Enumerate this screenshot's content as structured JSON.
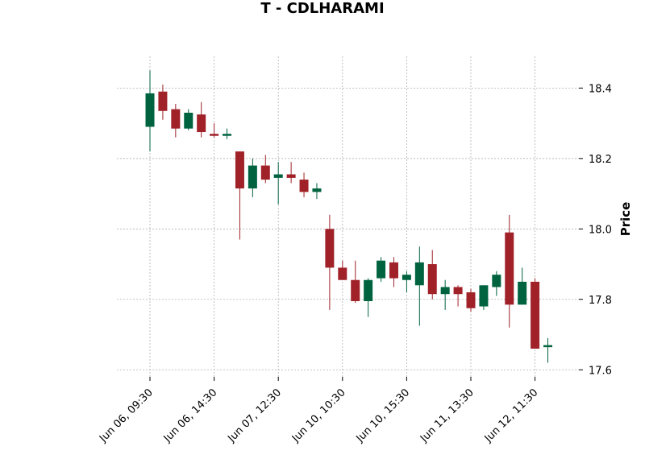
{
  "chart_data": {
    "type": "candlestick",
    "title": "T - CDLHARAMI",
    "ylabel": "Price",
    "xlabel": "",
    "ylim": [
      17.58,
      18.49
    ],
    "y_ticks": [
      17.6,
      17.8,
      18.0,
      18.2,
      18.4
    ],
    "y_tick_labels": [
      "17.6",
      "17.8",
      "18.0",
      "18.2",
      "18.4"
    ],
    "x_tick_labels": [
      "Jun 06, 09:30",
      "Jun 06, 14:30",
      "Jun 07, 12:30",
      "Jun 10, 10:30",
      "Jun 10, 15:30",
      "Jun 11, 13:30",
      "Jun 12, 11:30"
    ],
    "x_tick_indices": [
      0,
      5,
      10,
      15,
      20,
      25,
      30
    ],
    "grid": true,
    "up_color": "#006340",
    "down_color": "#a02128",
    "candles": [
      {
        "open": 18.29,
        "high": 18.45,
        "low": 18.22,
        "close": 18.385
      },
      {
        "open": 18.39,
        "high": 18.41,
        "low": 18.31,
        "close": 18.335
      },
      {
        "open": 18.34,
        "high": 18.355,
        "low": 18.26,
        "close": 18.285
      },
      {
        "open": 18.285,
        "high": 18.34,
        "low": 18.28,
        "close": 18.33
      },
      {
        "open": 18.325,
        "high": 18.36,
        "low": 18.26,
        "close": 18.275
      },
      {
        "open": 18.27,
        "high": 18.3,
        "low": 18.26,
        "close": 18.265
      },
      {
        "open": 18.265,
        "high": 18.285,
        "low": 18.255,
        "close": 18.27
      },
      {
        "open": 18.22,
        "high": 18.22,
        "low": 17.97,
        "close": 18.115
      },
      {
        "open": 18.115,
        "high": 18.2,
        "low": 18.09,
        "close": 18.18
      },
      {
        "open": 18.18,
        "high": 18.21,
        "low": 18.13,
        "close": 18.14
      },
      {
        "open": 18.145,
        "high": 18.19,
        "low": 18.07,
        "close": 18.155
      },
      {
        "open": 18.155,
        "high": 18.19,
        "low": 18.13,
        "close": 18.145
      },
      {
        "open": 18.14,
        "high": 18.16,
        "low": 18.09,
        "close": 18.105
      },
      {
        "open": 18.105,
        "high": 18.13,
        "low": 18.085,
        "close": 18.115
      },
      {
        "open": 18.0,
        "high": 18.04,
        "low": 17.77,
        "close": 17.89
      },
      {
        "open": 17.89,
        "high": 17.91,
        "low": 17.855,
        "close": 17.855
      },
      {
        "open": 17.855,
        "high": 17.91,
        "low": 17.79,
        "close": 17.795
      },
      {
        "open": 17.795,
        "high": 17.86,
        "low": 17.75,
        "close": 17.855
      },
      {
        "open": 17.86,
        "high": 17.92,
        "low": 17.85,
        "close": 17.91
      },
      {
        "open": 17.905,
        "high": 17.92,
        "low": 17.835,
        "close": 17.86
      },
      {
        "open": 17.855,
        "high": 17.88,
        "low": 17.82,
        "close": 17.87
      },
      {
        "open": 17.84,
        "high": 17.95,
        "low": 17.725,
        "close": 17.905
      },
      {
        "open": 17.9,
        "high": 17.94,
        "low": 17.8,
        "close": 17.815
      },
      {
        "open": 17.815,
        "high": 17.855,
        "low": 17.77,
        "close": 17.835
      },
      {
        "open": 17.835,
        "high": 17.84,
        "low": 17.78,
        "close": 17.815
      },
      {
        "open": 17.82,
        "high": 17.83,
        "low": 17.765,
        "close": 17.775
      },
      {
        "open": 17.78,
        "high": 17.84,
        "low": 17.77,
        "close": 17.84
      },
      {
        "open": 17.835,
        "high": 17.88,
        "low": 17.81,
        "close": 17.87
      },
      {
        "open": 17.99,
        "high": 18.04,
        "low": 17.72,
        "close": 17.785
      },
      {
        "open": 17.785,
        "high": 17.89,
        "low": 17.785,
        "close": 17.85
      },
      {
        "open": 17.85,
        "high": 17.86,
        "low": 17.66,
        "close": 17.66
      },
      {
        "open": 17.665,
        "high": 17.69,
        "low": 17.62,
        "close": 17.67
      }
    ]
  }
}
